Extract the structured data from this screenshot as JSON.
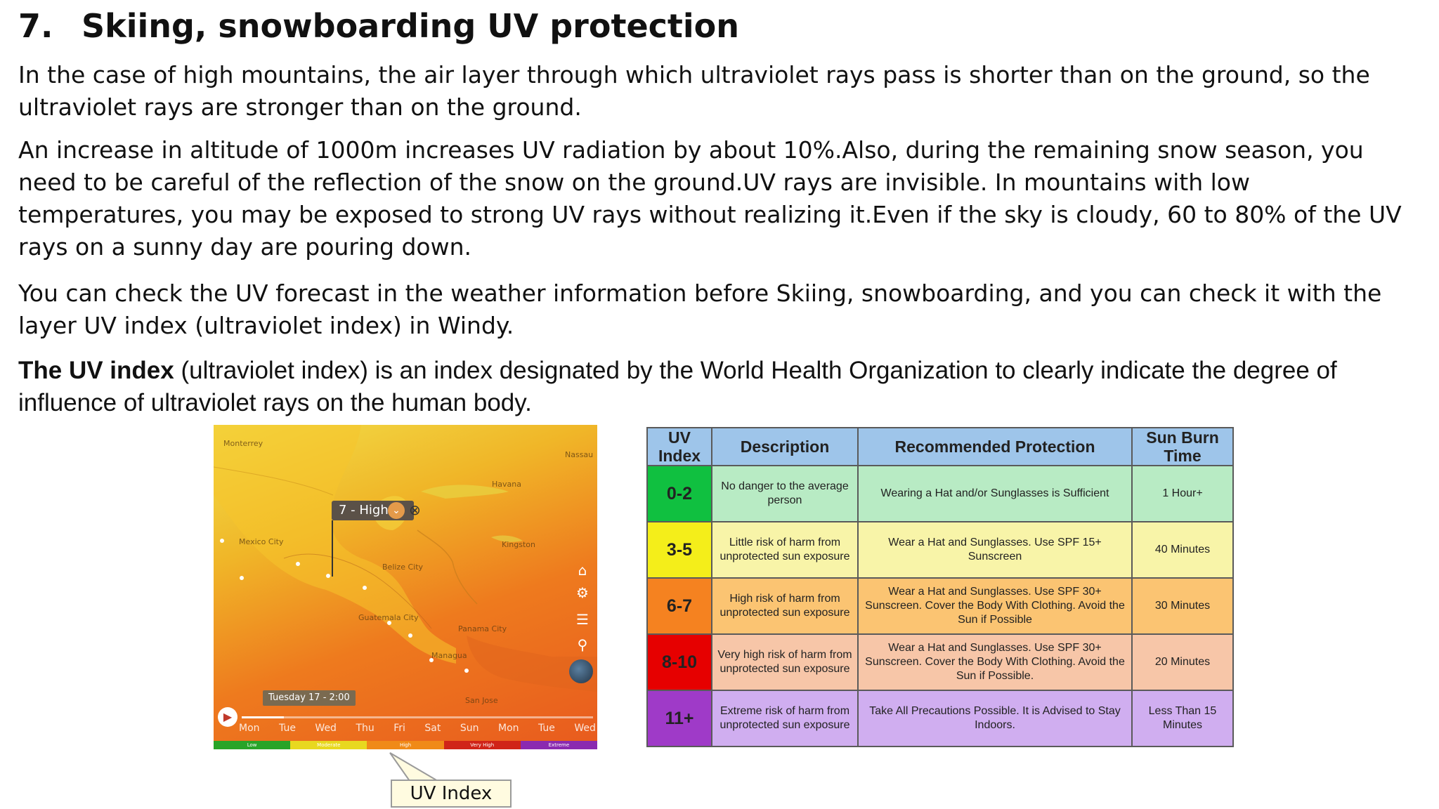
{
  "heading": {
    "number": "7.",
    "title": "Skiing, snowboarding UV protection"
  },
  "paragraphs": [
    "In the case of high mountains, the air layer through which ultraviolet rays pass is shorter than on the ground, so the ultraviolet rays are stronger than on the ground.",
    "An increase in altitude of 1000m increases UV radiation by about 10%.Also, during the remaining snow season, you need to be careful of the reflection of the snow on the ground.UV rays are invisible. In mountains with low temperatures, you may be exposed to strong UV rays without realizing it.Even if the sky is cloudy, 60 to 80% of the UV rays on a sunny day are pouring down.",
    "You can check the UV forecast in the weather information before   Skiing, snowboarding, and you can check it with the layer UV index (ultraviolet index) in Windy."
  ],
  "uv_intro": {
    "bold": "The UV index",
    "rest": " (ultraviolet index) is an index designated by the World Health Organization to clearly indicate the degree of influence of ultraviolet rays on the human body."
  },
  "map": {
    "popup_label": "7 - High",
    "date_label": "Tuesday 17 - 2:00",
    "days": [
      "Mon",
      "Tue",
      "Wed",
      "Thu",
      "Fri",
      "Sat",
      "Sun",
      "Mon",
      "Tue",
      "Wed"
    ],
    "scale": [
      "Low",
      "Moderate",
      "High",
      "Very High",
      "Extreme"
    ],
    "place_labels": [
      "Monterrey",
      "Mexico City",
      "Belize City",
      "Guatemala City",
      "Managua",
      "San Jose",
      "Panama City",
      "Kingston",
      "Havana",
      "Nassau"
    ],
    "scale_colors": [
      "#28a428",
      "#e8d820",
      "#f08a18",
      "#d02418",
      "#8a2ab0"
    ]
  },
  "callout_label": "UV Index",
  "uv_table": {
    "headers": [
      "UV Index",
      "Description",
      "Recommended Protection",
      "Sun Burn Time"
    ],
    "rows": [
      {
        "index": "0-2",
        "description": "No danger to the average person",
        "protection": "Wearing a Hat and/or Sunglasses is Sufficient",
        "time": "1 Hour+",
        "color": "#10c040",
        "fill": "#b8ebc4"
      },
      {
        "index": "3-5",
        "description": "Little risk of harm from unprotected sun exposure",
        "protection": "Wear a Hat and Sunglasses. Use SPF 15+ Sunscreen",
        "time": "40 Minutes",
        "color": "#f4ee1a",
        "fill": "#f8f4a8"
      },
      {
        "index": "6-7",
        "description": "High risk of harm from unprotected sun exposure",
        "protection": "Wear a Hat and Sunglasses. Use SPF 30+ Sunscreen. Cover the Body With Clothing. Avoid the Sun if Possible",
        "time": "30 Minutes",
        "color": "#f58220",
        "fill": "#fbc472"
      },
      {
        "index": "8-10",
        "description": "Very high risk of harm from unprotected sun exposure",
        "protection": "Wear a Hat and Sunglasses. Use SPF 30+ Sunscreen. Cover the Body With Clothing. Avoid the Sun if Possible.",
        "time": "20 Minutes",
        "color": "#e60000",
        "fill": "#f7c6a8"
      },
      {
        "index": "11+",
        "description": "Extreme risk of harm from unprotected sun exposure",
        "protection": "Take All Precautions Possible. It is Advised to Stay Indoors.",
        "time": "Less Than 15 Minutes",
        "color": "#9f3ac8",
        "fill": "#d0aef0"
      }
    ]
  }
}
